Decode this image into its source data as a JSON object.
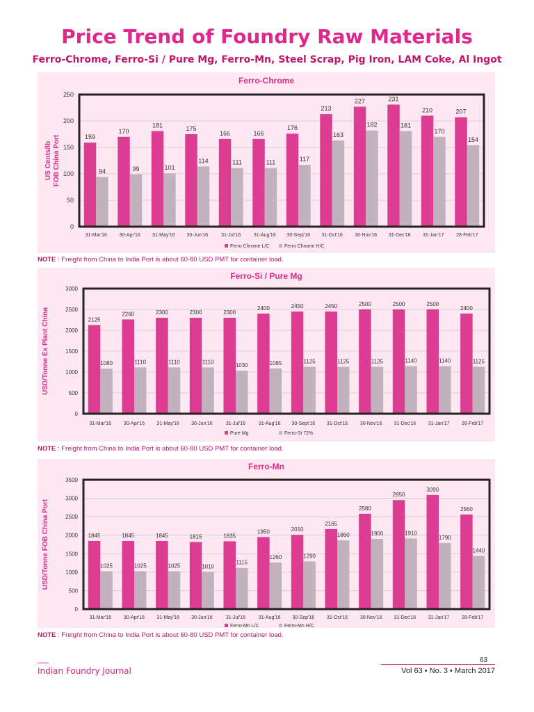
{
  "header": {
    "title": "Price Trend of Foundry Raw Materials",
    "subtitle": "Ferro-Chrome, Ferro-Si / Pure Mg, Ferro-Mn, Steel Scrap, Pig Iron,  LAM Coke, Al Ingot"
  },
  "notes": {
    "prefix": "NOTE",
    "text": " : Freight from China to India Port is about 60-80 USD PMT for container load."
  },
  "footer": {
    "journal": "Indian Foundry Journal",
    "page_number": "63",
    "volume": "Vol 63  •  No. 3 • March 2017"
  },
  "colors": {
    "series1": "#dc3d93",
    "series2": "#c2b2bd",
    "title": "#e0288c",
    "panel_bg": "#fde7f1"
  },
  "chart_data": [
    {
      "type": "bar",
      "title": "Ferro-Chrome",
      "ylabel": [
        "US Cents/lb",
        "FOB China Port"
      ],
      "xlabel": "",
      "ylim": [
        0,
        250
      ],
      "yticks": [
        0,
        50,
        100,
        150,
        200,
        250
      ],
      "categories": [
        "31-Mar'16",
        "30-Apr'16",
        "31-May'16",
        "30-Jun'16",
        "31-Jul'16",
        "31-Aug'16",
        "30-Sept'16",
        "31-Oct'16",
        "30-Nov'16",
        "31-Dec'16",
        "31-Jan'17",
        "28-Feb'17"
      ],
      "series": [
        {
          "name": "Ferro Chrome L/C",
          "values": [
            159,
            170,
            181,
            175,
            166,
            166,
            176,
            213,
            227,
            231,
            210,
            207
          ]
        },
        {
          "name": "Ferro Chrome H/C",
          "values": [
            94,
            99,
            101,
            114,
            111,
            111,
            117,
            163,
            182,
            181,
            170,
            154
          ]
        }
      ],
      "legend": "bottom"
    },
    {
      "type": "bar",
      "title": "Ferro-Si / Pure Mg",
      "ylabel": [
        "USD/Tonne Ex Plant China"
      ],
      "xlabel": "",
      "ylim": [
        0,
        3000
      ],
      "yticks": [
        0,
        500,
        1000,
        1500,
        2000,
        2500,
        3000
      ],
      "categories": [
        "31-Mar'16",
        "30-Apr'16",
        "31-May'16",
        "30-Jun'16",
        "31-Jul'16",
        "31-Aug'16",
        "30-Sept'16",
        "31-Oct'16",
        "30-Nov'16",
        "31-Dec'16",
        "31-Jan'17",
        "28-Feb'17"
      ],
      "series": [
        {
          "name": "Pure Mg",
          "values": [
            2125,
            2260,
            2300,
            2300,
            2300,
            2400,
            2450,
            2450,
            2500,
            2500,
            2500,
            2400
          ]
        },
        {
          "name": "Ferro-Si 72%",
          "values": [
            1080,
            1110,
            1110,
            1110,
            1030,
            1085,
            1125,
            1125,
            1125,
            1140,
            1140,
            1125
          ]
        }
      ],
      "legend": "bottom"
    },
    {
      "type": "bar",
      "title": "Ferro-Mn",
      "ylabel": [
        "USD/Tonne FOB China Port"
      ],
      "xlabel": "",
      "ylim": [
        0,
        3500
      ],
      "yticks": [
        0,
        500,
        1000,
        1500,
        2000,
        2500,
        3000,
        3500
      ],
      "categories": [
        "31-Mar'16",
        "30-Apr'16",
        "31-May'16",
        "30-Jun'16",
        "31-Jul'16",
        "31-Aug'16",
        "30-Sep'16",
        "31-Oct'16",
        "30-Nov'16",
        "31-Dec'16",
        "31-Jan'17",
        "28-Feb'17"
      ],
      "series": [
        {
          "name": "Ferro-Mn L/C",
          "values": [
            1845,
            1845,
            1845,
            1815,
            1835,
            1950,
            2010,
            2165,
            2580,
            2950,
            3090,
            2560
          ]
        },
        {
          "name": "Ferro-Mn H/C",
          "values": [
            1025,
            1025,
            1025,
            1010,
            1115,
            1260,
            1290,
            1860,
            1900,
            1910,
            1790,
            1440
          ]
        }
      ],
      "legend": "bottom"
    }
  ]
}
